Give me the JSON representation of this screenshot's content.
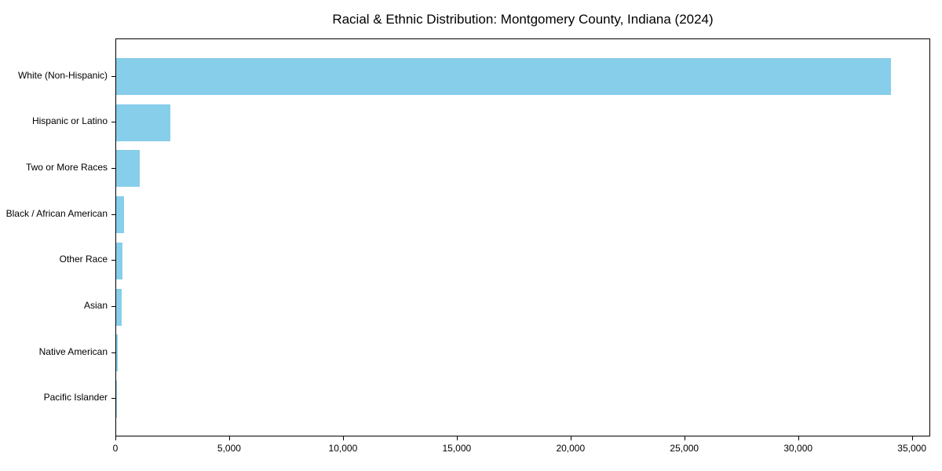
{
  "chart_data": {
    "type": "bar",
    "orientation": "horizontal",
    "title": "Racial & Ethnic Distribution: Montgomery County, Indiana (2024)",
    "categories": [
      "White (Non-Hispanic)",
      "Hispanic or Latino",
      "Two or More Races",
      "Black / African American",
      "Other Race",
      "Asian",
      "Native American",
      "Pacific Islander"
    ],
    "values": [
      34100,
      2400,
      1050,
      350,
      290,
      250,
      60,
      10
    ],
    "xlabel": "",
    "ylabel": "",
    "xlim": [
      0,
      35805
    ],
    "xticks": [
      0,
      5000,
      10000,
      15000,
      20000,
      25000,
      30000,
      35000
    ],
    "grid": false,
    "legend": false,
    "bar_color": "#87ceeb",
    "background_color": "#ffffff",
    "frame_color": "#000000"
  }
}
